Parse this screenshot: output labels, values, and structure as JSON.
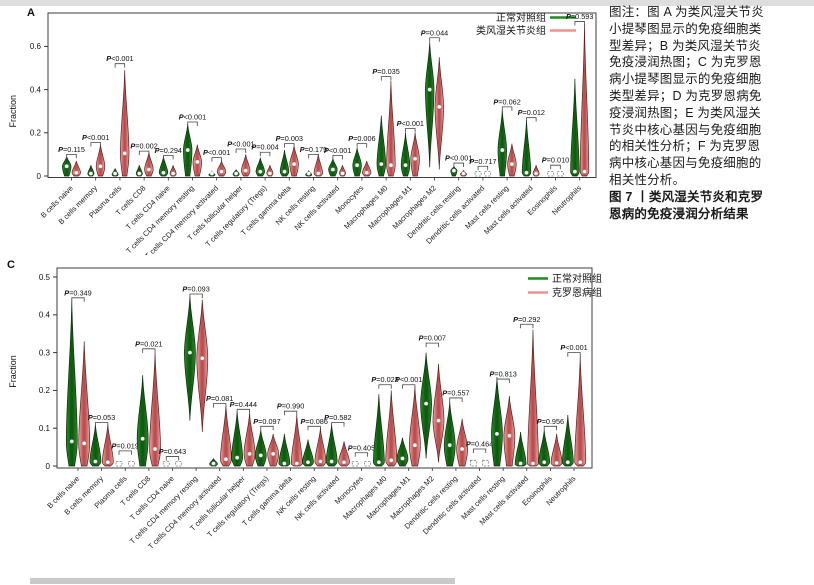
{
  "page": {
    "background": "#ffffff",
    "top_strip_color": "#dedede",
    "bottom_strip_color": "#c9c9c9"
  },
  "caption": {
    "lines": [
      {
        "text": "图注：图 A 为类风湿关节炎",
        "bold": false
      },
      {
        "text": "小提琴图显示的免疫细胞类",
        "bold": false
      },
      {
        "text": "型差异；B 为类风湿关节炎",
        "bold": false
      },
      {
        "text": "免疫浸润热图；C 为克罗恩",
        "bold": false
      },
      {
        "text": "病小提琴图显示的免疫细胞",
        "bold": false
      },
      {
        "text": "类型差异；D 为克罗恩病免",
        "bold": false
      },
      {
        "text": "疫浸润热图；E 为类风湿关",
        "bold": false
      },
      {
        "text": "节炎中核心基因与免疫细胞",
        "bold": false
      },
      {
        "text": "的相关性分析；F 为克罗恩",
        "bold": false
      },
      {
        "text": "病中核心基因与免疫细胞的",
        "bold": false
      },
      {
        "text": "相关性分析。",
        "bold": false
      },
      {
        "text": "图 7 丨类风湿关节炎和克罗",
        "bold": true
      },
      {
        "text": "恩病的免疫浸润分析结果",
        "bold": true
      }
    ]
  },
  "chart_data": [
    {
      "id": "A",
      "type": "violin",
      "panel_label": "A",
      "ylabel": "Fraction",
      "ylim": [
        0,
        0.75
      ],
      "yticks": [
        0,
        0.2,
        0.4,
        0.6
      ],
      "grid": false,
      "legend": {
        "position": "top-right-inside",
        "layout": "text-line",
        "entries": [
          {
            "label": "正常对照组",
            "color": "#1f8c1f"
          },
          {
            "label": "类风湿关节炎组",
            "color": "#f09090"
          }
        ]
      },
      "series": [
        {
          "name": "正常对照组",
          "key": "control",
          "fill": "#1c701c"
        },
        {
          "name": "类风湿关节炎组",
          "key": "disease",
          "fill": "#d96a6a"
        }
      ],
      "categories": [
        "B cells naive",
        "B cells memory",
        "Plasma cells",
        "T cells CD8",
        "T cells CD4 naive",
        "T cells CD4 memory resting",
        "T cells CD4 memory activated",
        "T cells follicular helper",
        "T cells regulatory (Tregs)",
        "T cells gamma delta",
        "NK cells resting",
        "NK cells activated",
        "Monocytes",
        "Macrophages M0",
        "Macrophages M1",
        "Macrophages M2",
        "Dendritic cells resting",
        "Dendritic cells activated",
        "Mast cells resting",
        "Mast cells activated",
        "Eosinophils",
        "Neutrophils"
      ],
      "points": [
        {
          "category": "B cells naive",
          "p": "P=0.115",
          "bracket": 0.1,
          "control": {
            "max": 0.09,
            "median": 0.045
          },
          "disease": {
            "max": 0.07,
            "median": 0.015
          }
        },
        {
          "category": "B cells memory",
          "p": "P<0.001",
          "bracket": 0.155,
          "control": {
            "max": 0.05,
            "median": 0.01
          },
          "disease": {
            "max": 0.145,
            "median": 0.045
          }
        },
        {
          "category": "Plasma cells",
          "p": "P<0.001",
          "bracket": 0.52,
          "control": {
            "max": 0.035,
            "median": 0.005
          },
          "disease": {
            "max": 0.49,
            "median": 0.105
          }
        },
        {
          "category": "T cells CD8",
          "p": "P=0.002",
          "bracket": 0.115,
          "control": {
            "max": 0.05,
            "median": 0.01
          },
          "disease": {
            "max": 0.11,
            "median": 0.03
          }
        },
        {
          "category": "T cells CD4 naive",
          "p": "P=0.294",
          "bracket": 0.095,
          "control": {
            "max": 0.09,
            "median": 0.015
          },
          "disease": {
            "max": 0.05,
            "median": 0.01
          }
        },
        {
          "category": "T cells CD4 memory resting",
          "p": "P<0.001",
          "bracket": 0.25,
          "control": {
            "max": 0.24,
            "median": 0.12
          },
          "disease": {
            "max": 0.145,
            "median": 0.065
          }
        },
        {
          "category": "T cells CD4 memory activated",
          "p": "P<0.001",
          "bracket": 0.085,
          "control": {
            "max": 0.02,
            "median": 0.005
          },
          "disease": {
            "max": 0.07,
            "median": 0.02
          }
        },
        {
          "category": "T cells follicular helper",
          "p": "P<0.001",
          "bracket": 0.125,
          "control": {
            "max": 0.03,
            "median": 0.008
          },
          "disease": {
            "max": 0.1,
            "median": 0.025
          }
        },
        {
          "category": "T cells regulatory (Tregs)",
          "p": "P=0.004",
          "bracket": 0.11,
          "control": {
            "max": 0.085,
            "median": 0.02
          },
          "disease": {
            "max": 0.05,
            "median": 0.012
          }
        },
        {
          "category": "T cells gamma delta",
          "p": "P=0.003",
          "bracket": 0.15,
          "control": {
            "max": 0.12,
            "median": 0.02
          },
          "disease": {
            "max": 0.14,
            "median": 0.055
          }
        },
        {
          "category": "NK cells resting",
          "p": "P=0.175",
          "bracket": 0.1,
          "control": {
            "max": 0.025,
            "median": 0.005
          },
          "disease": {
            "max": 0.1,
            "median": 0.012
          }
        },
        {
          "category": "NK cells activated",
          "p": "P<0.001",
          "bracket": 0.095,
          "control": {
            "max": 0.08,
            "median": 0.03
          },
          "disease": {
            "max": 0.05,
            "median": 0.012
          }
        },
        {
          "category": "Monocytes",
          "p": "P=0.006",
          "bracket": 0.15,
          "control": {
            "max": 0.13,
            "median": 0.05
          },
          "disease": {
            "max": 0.07,
            "median": 0.015
          }
        },
        {
          "category": "Macrophages M0",
          "p": "P=0.035",
          "bracket": 0.46,
          "control": {
            "max": 0.28,
            "median": 0.055
          },
          "disease": {
            "max": 0.44,
            "median": 0.05
          }
        },
        {
          "category": "Macrophages M1",
          "p": "P<0.001",
          "bracket": 0.22,
          "control": {
            "max": 0.2,
            "median": 0.05
          },
          "disease": {
            "max": 0.2,
            "median": 0.08
          }
        },
        {
          "category": "Macrophages M2",
          "p": "P=0.044",
          "bracket": 0.64,
          "control": {
            "min": 0.04,
            "max": 0.62,
            "median": 0.4
          },
          "disease": {
            "min": 0.03,
            "max": 0.55,
            "median": 0.32
          }
        },
        {
          "category": "Dendritic cells resting",
          "p": "P<0.001",
          "bracket": 0.06,
          "control": {
            "max": 0.045,
            "median": 0.025
          },
          "disease": {
            "max": 0.025,
            "median": 0.008
          }
        },
        {
          "category": "Dendritic cells activated",
          "p": "P=0.717",
          "bracket": 0.045,
          "style": "dashed",
          "control": {
            "max": 0.012
          },
          "disease": {
            "max": 0.02
          }
        },
        {
          "category": "Mast cells resting",
          "p": "P=0.062",
          "bracket": 0.32,
          "control": {
            "max": 0.305,
            "median": 0.12
          },
          "disease": {
            "max": 0.15,
            "median": 0.055
          }
        },
        {
          "category": "Mast cells activated",
          "p": "P=0.012",
          "bracket": 0.27,
          "control": {
            "max": 0.26,
            "median": 0.015
          },
          "disease": {
            "max": 0.05,
            "median": 0.01
          }
        },
        {
          "category": "Eosinophils",
          "p": "P=0.010",
          "bracket": 0.05,
          "style": "dashed",
          "control": {
            "max": 0.01
          },
          "disease": {
            "max": 0.015
          }
        },
        {
          "category": "Neutrophils",
          "p": "P=0.593",
          "bracket": 0.715,
          "control": {
            "max": 0.45,
            "median": 0.02
          },
          "disease": {
            "max": 0.7,
            "median": 0.02
          }
        }
      ]
    },
    {
      "id": "C",
      "type": "violin",
      "panel_label": "C",
      "ylabel": "Fraction",
      "ylim": [
        0,
        0.52
      ],
      "yticks": [
        0,
        0.1,
        0.2,
        0.3,
        0.4,
        0.5
      ],
      "grid": false,
      "legend": {
        "position": "top-right-inside",
        "layout": "line-text",
        "entries": [
          {
            "label": "正常对照组",
            "color": "#1f8c1f"
          },
          {
            "label": "克罗恩病组",
            "color": "#f09090"
          }
        ]
      },
      "series": [
        {
          "name": "正常对照组",
          "key": "control",
          "fill": "#1c701c"
        },
        {
          "name": "克罗恩病组",
          "key": "disease",
          "fill": "#d96a6a"
        }
      ],
      "categories": [
        "B cells naive",
        "B cells memory",
        "Plasma cells",
        "T cells CD8",
        "T cells CD4 naive",
        "T cells CD4 memory resting",
        "T cells CD4 memory activated",
        "T cells follicular helper",
        "T cells regulatory (Tregs)",
        "T cells gamma delta",
        "NK cells resting",
        "NK cells activated",
        "Monocytes",
        "Macrophages M0",
        "Macrophages M1",
        "Macrophages M2",
        "Dendritic cells resting",
        "Dendritic cells activated",
        "Mast cells resting",
        "Mast cells activated",
        "Eosinophils",
        "Neutrophils"
      ],
      "points": [
        {
          "category": "B cells naive",
          "p": "P=0.349",
          "bracket": 0.445,
          "control": {
            "max": 0.44,
            "median": 0.065
          },
          "disease": {
            "max": 0.33,
            "median": 0.06
          }
        },
        {
          "category": "B cells memory",
          "p": "P=0.053",
          "bracket": 0.115,
          "control": {
            "max": 0.11,
            "median": 0.012
          },
          "disease": {
            "max": 0.11,
            "median": 0.01
          }
        },
        {
          "category": "Plasma cells",
          "p": "P=0.019",
          "bracket": 0.04,
          "style": "dashed",
          "control": {
            "max": 0.012
          },
          "disease": {
            "max": 0.012
          }
        },
        {
          "category": "T cells CD8",
          "p": "P=0.021",
          "bracket": 0.31,
          "control": {
            "max": 0.24,
            "median": 0.072
          },
          "disease": {
            "max": 0.3,
            "median": 0.045
          }
        },
        {
          "category": "T cells CD4 naive",
          "p": "P=0.643",
          "bracket": 0.025,
          "style": "dashed",
          "control": {
            "max": 0.008
          },
          "disease": {
            "max": 0.008
          }
        },
        {
          "category": "T cells CD4 memory resting",
          "p": "P=0.093",
          "bracket": 0.455,
          "control": {
            "min": 0.12,
            "max": 0.45,
            "median": 0.3
          },
          "disease": {
            "min": 0.09,
            "max": 0.44,
            "median": 0.285
          }
        },
        {
          "category": "T cells CD4 memory activated",
          "p": "P=0.081",
          "bracket": 0.165,
          "control": {
            "max": 0.02,
            "median": 0.005
          },
          "disease": {
            "max": 0.16,
            "median": 0.018
          }
        },
        {
          "category": "T cells follicular helper",
          "p": "P=0.444",
          "bracket": 0.15,
          "control": {
            "max": 0.145,
            "median": 0.022
          },
          "disease": {
            "max": 0.14,
            "median": 0.032
          }
        },
        {
          "category": "T cells regulatory (Tregs)",
          "p": "P=0.097",
          "bracket": 0.105,
          "control": {
            "max": 0.095,
            "median": 0.028
          },
          "disease": {
            "max": 0.085,
            "median": 0.032
          }
        },
        {
          "category": "T cells gamma delta",
          "p": "P=0.990",
          "bracket": 0.145,
          "control": {
            "max": 0.085,
            "median": 0.006
          },
          "disease": {
            "max": 0.135,
            "median": 0.006
          }
        },
        {
          "category": "NK cells resting",
          "p": "P=0.086",
          "bracket": 0.105,
          "control": {
            "max": 0.07,
            "median": 0.01
          },
          "disease": {
            "max": 0.1,
            "median": 0.012
          }
        },
        {
          "category": "NK cells activated",
          "p": "P=0.582",
          "bracket": 0.115,
          "control": {
            "max": 0.11,
            "median": 0.012
          },
          "disease": {
            "max": 0.065,
            "median": 0.01
          }
        },
        {
          "category": "Monocytes",
          "p": "P=0.405",
          "bracket": 0.035,
          "style": "dashed",
          "control": {
            "max": 0.012
          },
          "disease": {
            "max": 0.012
          }
        },
        {
          "category": "Macrophages M0",
          "p": "P=0.023",
          "bracket": 0.215,
          "control": {
            "max": 0.19,
            "median": 0.01
          },
          "disease": {
            "max": 0.2,
            "median": 0.015
          }
        },
        {
          "category": "Macrophages M1",
          "p": "P<0.001",
          "bracket": 0.215,
          "control": {
            "max": 0.075,
            "median": 0.02
          },
          "disease": {
            "max": 0.21,
            "median": 0.055
          }
        },
        {
          "category": "Macrophages M2",
          "p": "P=0.007",
          "bracket": 0.325,
          "control": {
            "min": 0.02,
            "max": 0.3,
            "median": 0.165
          },
          "disease": {
            "min": 0.01,
            "max": 0.27,
            "median": 0.12
          }
        },
        {
          "category": "Dendritic cells resting",
          "p": "P=0.557",
          "bracket": 0.18,
          "control": {
            "max": 0.17,
            "median": 0.055
          },
          "disease": {
            "max": 0.125,
            "median": 0.045
          }
        },
        {
          "category": "Dendritic cells activated",
          "p": "P=0.464",
          "bracket": 0.045,
          "style": "dashed",
          "control": {
            "max": 0.015
          },
          "disease": {
            "max": 0.015
          }
        },
        {
          "category": "Mast cells resting",
          "p": "P=0.813",
          "bracket": 0.23,
          "control": {
            "max": 0.235,
            "median": 0.085
          },
          "disease": {
            "max": 0.185,
            "median": 0.08
          }
        },
        {
          "category": "Mast cells activated",
          "p": "P=0.292",
          "bracket": 0.375,
          "control": {
            "max": 0.09,
            "median": 0.005
          },
          "disease": {
            "max": 0.36,
            "median": 0.006
          }
        },
        {
          "category": "Eosinophils",
          "p": "P=0.956",
          "bracket": 0.105,
          "control": {
            "max": 0.095,
            "median": 0.01
          },
          "disease": {
            "max": 0.085,
            "median": 0.008
          }
        },
        {
          "category": "Neutrophils",
          "p": "P<0.001",
          "bracket": 0.3,
          "control": {
            "max": 0.135,
            "median": 0.01
          },
          "disease": {
            "max": 0.29,
            "median": 0.01
          }
        }
      ]
    }
  ]
}
